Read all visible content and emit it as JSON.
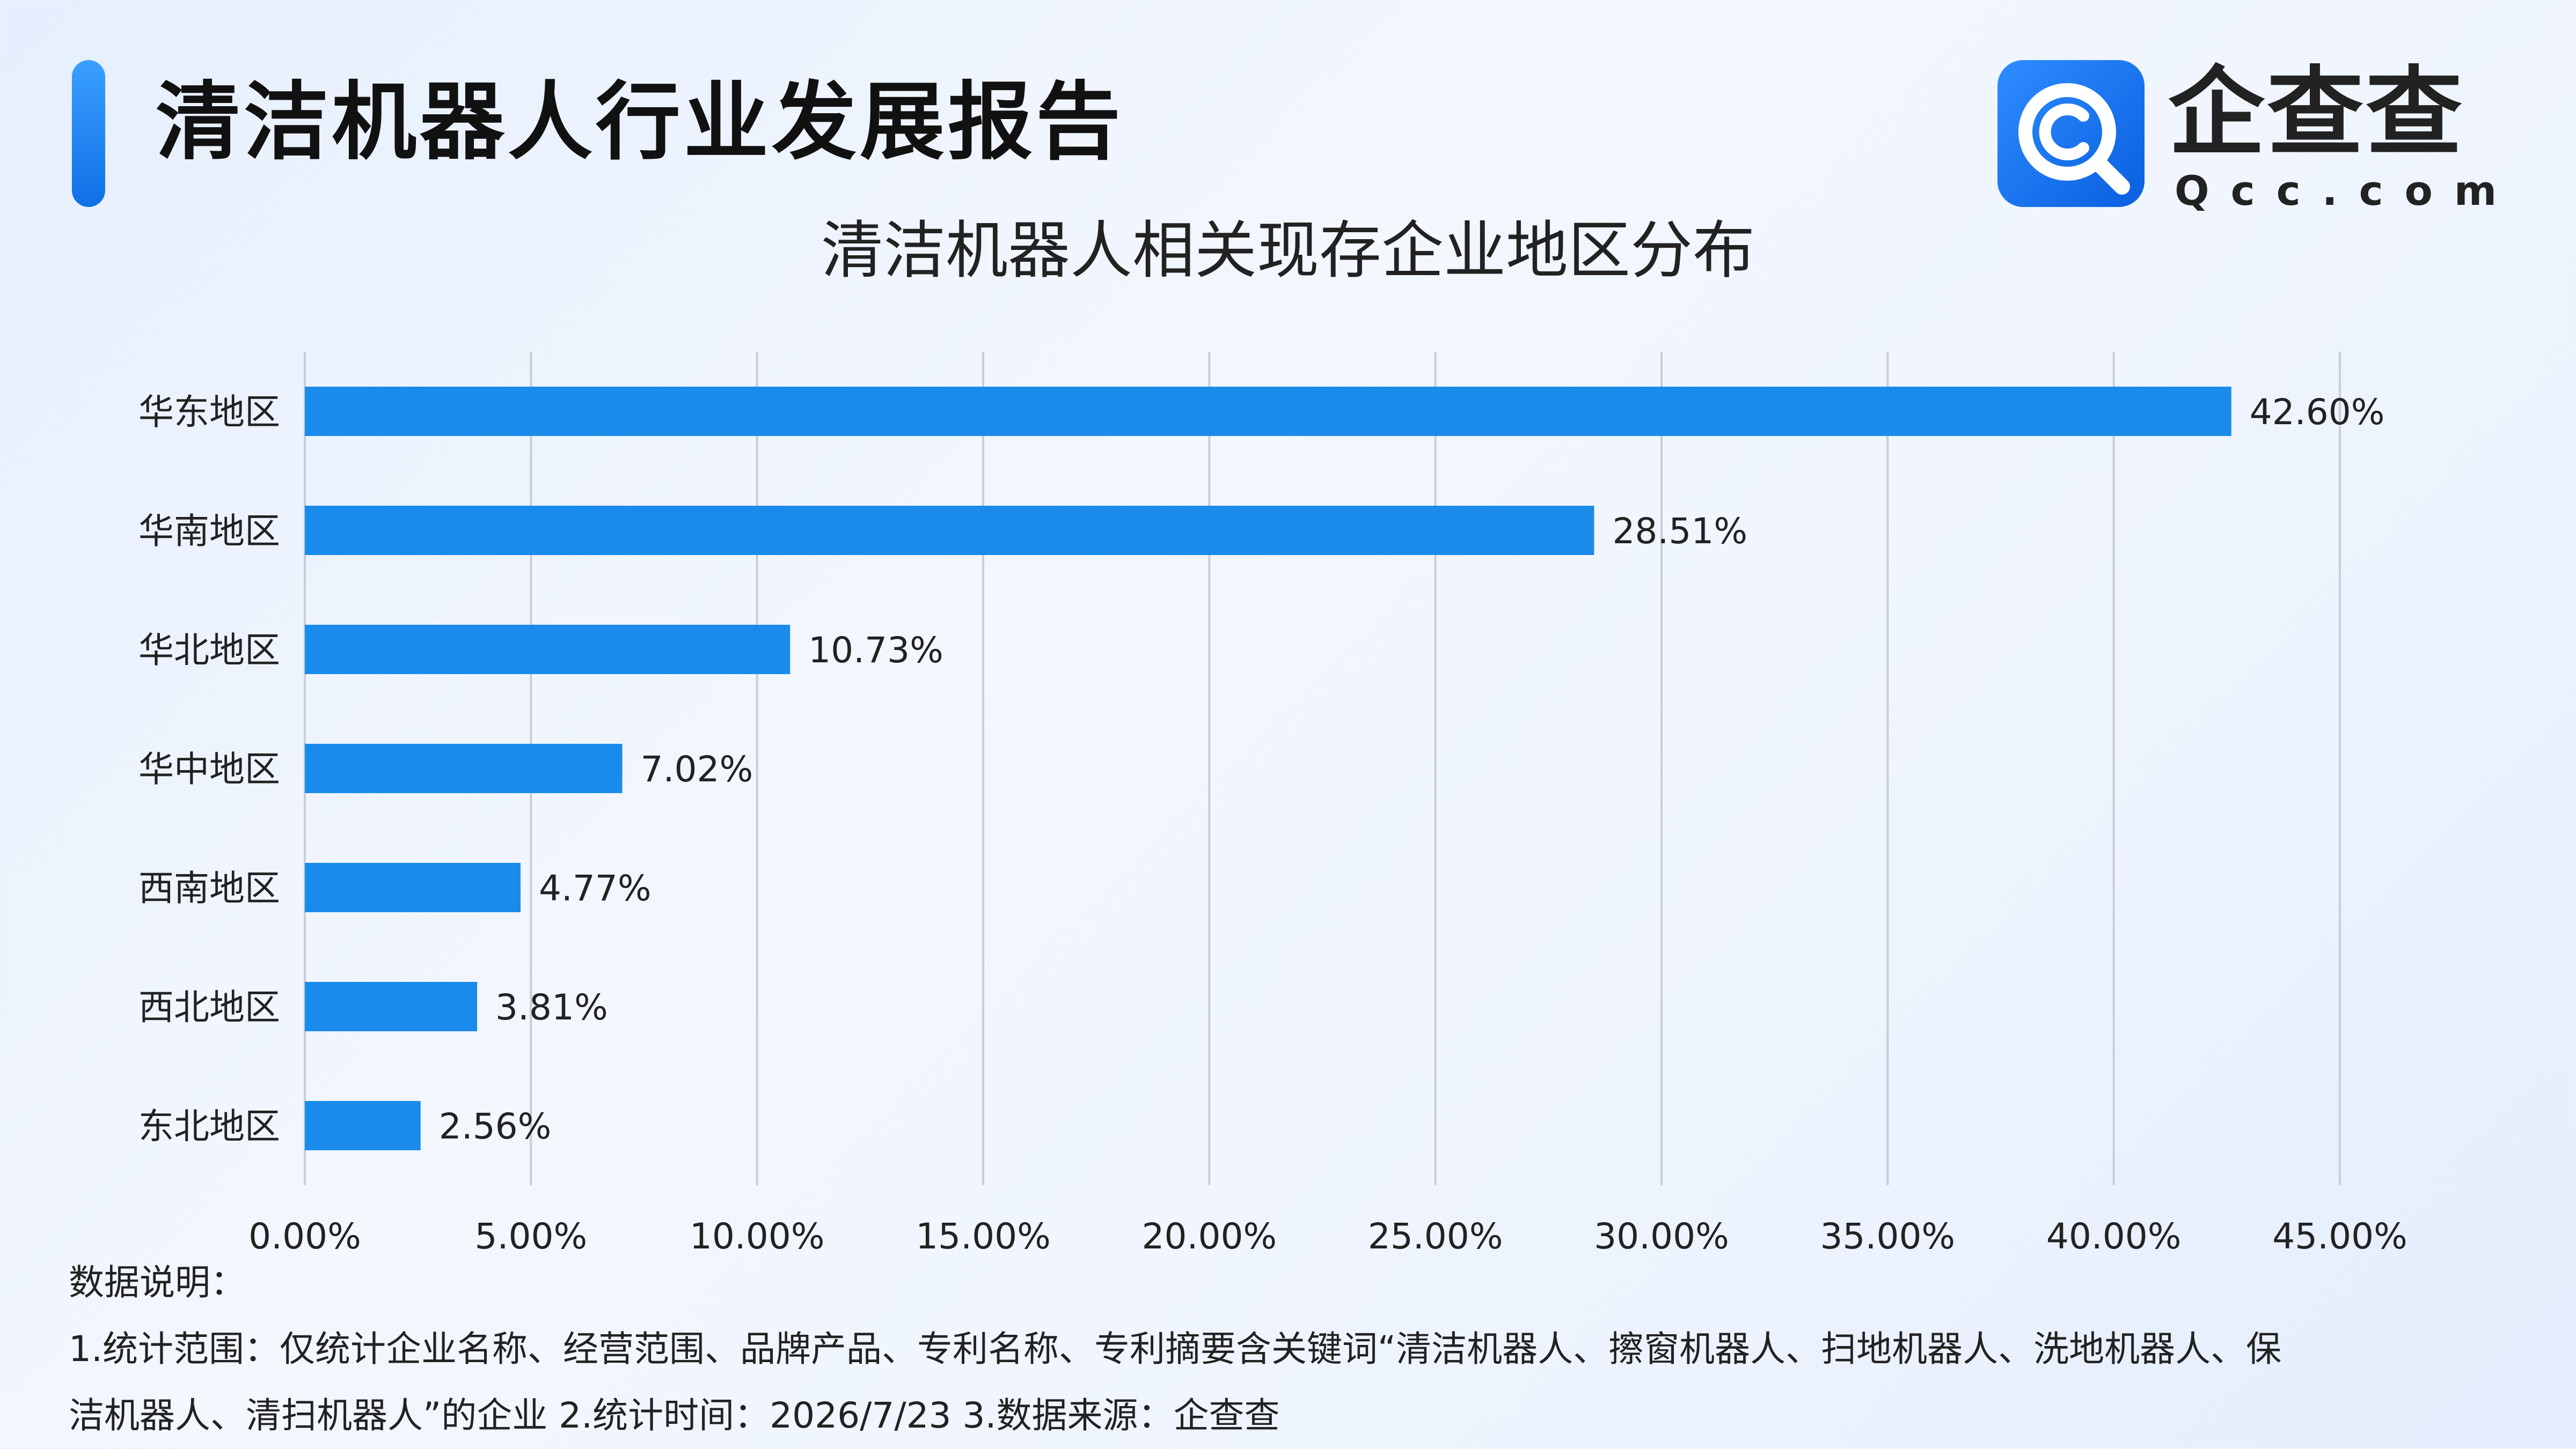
{
  "header": {
    "report_title": "清洁机器人行业发展报告",
    "logo_word": "企查查",
    "logo_domain": "Qcc.com"
  },
  "colors": {
    "bar": "#1a8bea",
    "accent": "#1a7ff0",
    "grid": "#c9ced6"
  },
  "icons": {
    "logo": "qcc-magnifier-icon"
  },
  "chart_data": {
    "type": "bar",
    "orientation": "horizontal",
    "title": "清洁机器人相关现存企业地区分布",
    "categories": [
      "华东地区",
      "华南地区",
      "华北地区",
      "华中地区",
      "西南地区",
      "西北地区",
      "东北地区"
    ],
    "values": [
      42.6,
      28.51,
      10.73,
      7.02,
      4.77,
      3.81,
      2.56
    ],
    "data_labels": [
      "42.60%",
      "28.51%",
      "10.73%",
      "7.02%",
      "4.77%",
      "3.81%",
      "2.56%"
    ],
    "xlim": [
      0,
      45
    ],
    "xticks": [
      0,
      5,
      10,
      15,
      20,
      25,
      30,
      35,
      40,
      45
    ],
    "xtick_labels": [
      "0.00%",
      "5.00%",
      "10.00%",
      "15.00%",
      "20.00%",
      "25.00%",
      "30.00%",
      "35.00%",
      "40.00%",
      "45.00%"
    ],
    "grid": "vertical",
    "legend": "none"
  },
  "notes": {
    "heading": "数据说明：",
    "line1": "1.统计范围：仅统计企业名称、经营范围、品牌产品、专利名称、专利摘要含关键词“清洁机器人、擦窗机器人、扫地机器人、洗地机器人、保",
    "line2": "洁机器人、清扫机器人”的企业   2.统计时间：2026/7/23  3.数据来源：企查查"
  }
}
